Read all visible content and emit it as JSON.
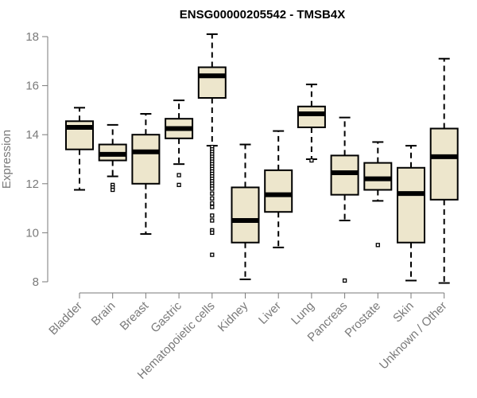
{
  "chart_data": {
    "type": "boxplot",
    "title": "ENSG00000205542 - TMSB4X",
    "xlabel": "",
    "ylabel": "Expression",
    "ylim": [
      8,
      18
    ],
    "yticks": [
      8,
      10,
      12,
      14,
      16,
      18
    ],
    "colors": {
      "box_fill": "#ede6cc",
      "stroke": "#000000",
      "axis": "#7a7a7a",
      "text": "#7a7a7a"
    },
    "categories": [
      "Bladder",
      "Brain",
      "Breast",
      "Gastric",
      "Hematopoietic cells",
      "Kidney",
      "Liver",
      "Lung",
      "Pancreas",
      "Prostate",
      "Skin",
      "Unknown / Other"
    ],
    "boxes": [
      {
        "category": "Bladder",
        "whisker_low": 11.75,
        "q1": 13.4,
        "median": 14.3,
        "q3": 14.55,
        "whisker_high": 15.1,
        "outliers": []
      },
      {
        "category": "Brain",
        "whisker_low": 12.3,
        "q1": 12.95,
        "median": 13.2,
        "q3": 13.6,
        "whisker_high": 14.4,
        "outliers": [
          11.95,
          11.85,
          11.75
        ]
      },
      {
        "category": "Breast",
        "whisker_low": 9.95,
        "q1": 12.0,
        "median": 13.3,
        "q3": 14.0,
        "whisker_high": 14.85,
        "outliers": []
      },
      {
        "category": "Gastric",
        "whisker_low": 12.8,
        "q1": 13.85,
        "median": 14.25,
        "q3": 14.65,
        "whisker_high": 15.4,
        "outliers": [
          12.35,
          11.95
        ]
      },
      {
        "category": "Hematopoietic cells",
        "whisker_low": 13.55,
        "q1": 15.5,
        "median": 16.4,
        "q3": 16.75,
        "whisker_high": 18.1,
        "outliers": [
          13.5,
          13.4,
          13.3,
          13.2,
          13.1,
          13.0,
          12.9,
          12.8,
          12.7,
          12.6,
          12.5,
          12.4,
          12.3,
          12.2,
          12.1,
          12.0,
          11.9,
          11.8,
          11.6,
          11.4,
          11.2,
          11.05,
          10.7,
          10.5,
          10.1,
          10.0,
          9.1
        ]
      },
      {
        "category": "Kidney",
        "whisker_low": 8.1,
        "q1": 9.6,
        "median": 10.5,
        "q3": 11.85,
        "whisker_high": 13.6,
        "outliers": []
      },
      {
        "category": "Liver",
        "whisker_low": 9.4,
        "q1": 10.85,
        "median": 11.55,
        "q3": 12.55,
        "whisker_high": 14.15,
        "outliers": []
      },
      {
        "category": "Lung",
        "whisker_low": 13.0,
        "q1": 14.3,
        "median": 14.85,
        "q3": 15.15,
        "whisker_high": 16.05,
        "outliers": [
          12.95
        ]
      },
      {
        "category": "Pancreas",
        "whisker_low": 10.5,
        "q1": 11.55,
        "median": 12.45,
        "q3": 13.15,
        "whisker_high": 14.7,
        "outliers": [
          8.05
        ]
      },
      {
        "category": "Prostate",
        "whisker_low": 11.3,
        "q1": 11.75,
        "median": 12.2,
        "q3": 12.85,
        "whisker_high": 13.7,
        "outliers": [
          9.5
        ]
      },
      {
        "category": "Skin",
        "whisker_low": 8.05,
        "q1": 9.6,
        "median": 11.6,
        "q3": 12.65,
        "whisker_high": 13.55,
        "outliers": []
      },
      {
        "category": "Unknown / Other",
        "whisker_low": 7.95,
        "q1": 11.35,
        "median": 13.1,
        "q3": 14.25,
        "whisker_high": 17.1,
        "outliers": []
      }
    ]
  }
}
